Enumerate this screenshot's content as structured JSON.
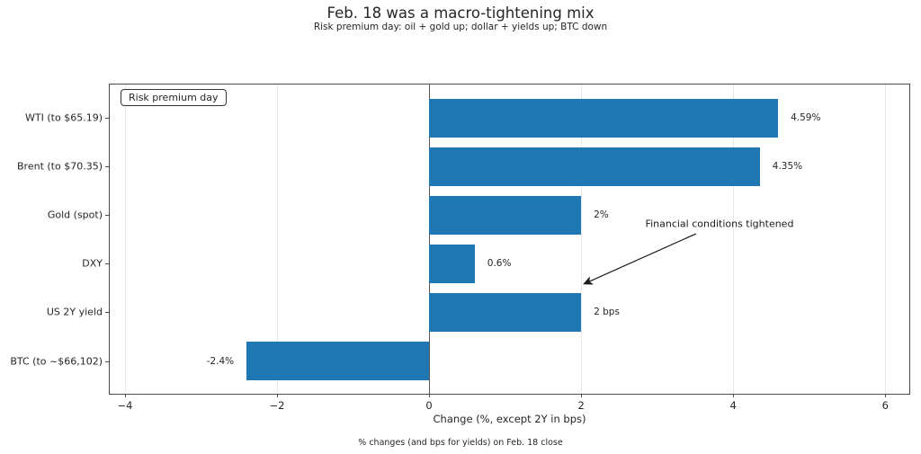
{
  "chart_data": {
    "type": "bar",
    "orientation": "horizontal",
    "title": "Feb. 18 was a macro-tightening mix",
    "subtitle": "Risk premium day: oil + gold up; dollar + yields up; BTC down",
    "categories": [
      "WTI (to $65.19)",
      "Brent (to $70.35)",
      "Gold (spot)",
      "DXY",
      "US 2Y yield",
      "BTC (to ~$66,102)"
    ],
    "values": [
      4.59,
      4.35,
      2,
      0.6,
      2,
      -2.4
    ],
    "bar_labels": [
      "4.59%",
      "4.35%",
      "2%",
      "0.6%",
      "2 bps",
      "-2.4%"
    ],
    "xlabel": "Change (%, except 2Y in bps)",
    "xticks": [
      -4,
      -2,
      0,
      2,
      4,
      6
    ],
    "xtick_labels": [
      "−4",
      "−2",
      "0",
      "2",
      "4",
      "6"
    ],
    "xlim": [
      -4.2,
      6.34
    ],
    "grid": "vertical",
    "gridline_color": "#e7e7e7",
    "legend_box_label": "Risk premium day",
    "annotation_text": "Financial conditions tightened",
    "footnote": "% changes (and bps for yields) on Feb. 18 close",
    "bar_color": "#1f77b4",
    "zero_line": true,
    "legend_position": "upper left"
  }
}
